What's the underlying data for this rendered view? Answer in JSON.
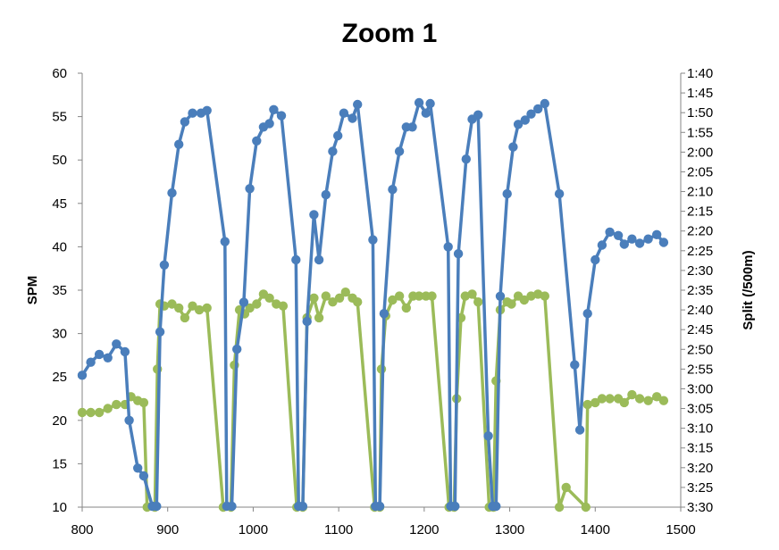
{
  "chart_data": {
    "type": "line",
    "title": "Zoom 1",
    "xlabel": "",
    "ylabel": "SPM",
    "y2label": "Split (/500m)",
    "xlim": [
      800,
      1500
    ],
    "ylim": [
      10,
      60
    ],
    "y2lim": [
      "1:40",
      "3:30"
    ],
    "x_ticks": [
      "800",
      "900",
      "1000",
      "1100",
      "1200",
      "1300",
      "1400",
      "1500"
    ],
    "y_ticks": [
      "10",
      "15",
      "20",
      "25",
      "30",
      "35",
      "40",
      "45",
      "50",
      "55",
      "60"
    ],
    "y2_ticks": [
      "1:40",
      "1:45",
      "1:50",
      "1:55",
      "2:00",
      "2:05",
      "2:10",
      "2:15",
      "2:20",
      "2:25",
      "2:30",
      "2:35",
      "2:40",
      "2:45",
      "2:50",
      "2:55",
      "3:00",
      "3:05",
      "3:10",
      "3:15",
      "3:20",
      "3:25",
      "3:30"
    ],
    "grid": false,
    "legend": "none",
    "series": [
      {
        "axis": "left",
        "color": "#4a7ebb",
        "points": [
          [
            800,
            25.2
          ],
          [
            810,
            26.7
          ],
          [
            820,
            27.6
          ],
          [
            830,
            27.2
          ],
          [
            840,
            28.8
          ],
          [
            850,
            27.9
          ],
          [
            855,
            20
          ],
          [
            865,
            14.5
          ],
          [
            872,
            13.6
          ],
          [
            882,
            10.1
          ],
          [
            887,
            10.1
          ],
          [
            891,
            30.2
          ],
          [
            896,
            37.9
          ],
          [
            905,
            46.2
          ],
          [
            913,
            51.8
          ],
          [
            920,
            54.4
          ],
          [
            929,
            55.4
          ],
          [
            939,
            55.4
          ],
          [
            946,
            55.7
          ],
          [
            967,
            40.6
          ],
          [
            969,
            10.1
          ],
          [
            975,
            10.1
          ],
          [
            981,
            28.2
          ],
          [
            989,
            33.6
          ],
          [
            996,
            46.7
          ],
          [
            1004,
            52.2
          ],
          [
            1012,
            53.8
          ],
          [
            1019,
            54.2
          ],
          [
            1024,
            55.8
          ],
          [
            1033,
            55.1
          ],
          [
            1050,
            38.5
          ],
          [
            1053,
            10.1
          ],
          [
            1058,
            10.1
          ],
          [
            1063,
            31.4
          ],
          [
            1071,
            43.7
          ],
          [
            1077,
            38.5
          ],
          [
            1085,
            46
          ],
          [
            1093,
            51
          ],
          [
            1099,
            52.8
          ],
          [
            1106,
            55.4
          ],
          [
            1116,
            54.8
          ],
          [
            1122,
            56.4
          ],
          [
            1140,
            40.8
          ],
          [
            1143,
            10.1
          ],
          [
            1148,
            10.1
          ],
          [
            1153,
            32.3
          ],
          [
            1163,
            46.6
          ],
          [
            1171,
            51
          ],
          [
            1179,
            53.8
          ],
          [
            1186,
            53.8
          ],
          [
            1194,
            56.6
          ],
          [
            1202,
            55.4
          ],
          [
            1207,
            56.5
          ],
          [
            1228,
            40
          ],
          [
            1231,
            10.1
          ],
          [
            1236,
            10.1
          ],
          [
            1240,
            39.2
          ],
          [
            1249,
            50.1
          ],
          [
            1256,
            54.7
          ],
          [
            1263,
            55.2
          ],
          [
            1275,
            18.2
          ],
          [
            1280,
            10.1
          ],
          [
            1284,
            10.1
          ],
          [
            1289,
            34.3
          ],
          [
            1297,
            46.1
          ],
          [
            1304,
            51.5
          ],
          [
            1310,
            54.1
          ],
          [
            1318,
            54.6
          ],
          [
            1325,
            55.3
          ],
          [
            1333,
            55.9
          ],
          [
            1341,
            56.5
          ],
          [
            1358,
            46.1
          ],
          [
            1376,
            26.4
          ],
          [
            1382,
            18.9
          ],
          [
            1391,
            32.3
          ],
          [
            1400,
            38.5
          ],
          [
            1408,
            40.2
          ],
          [
            1417,
            41.7
          ],
          [
            1427,
            41.3
          ],
          [
            1434,
            40.3
          ],
          [
            1443,
            40.9
          ],
          [
            1452,
            40.4
          ],
          [
            1462,
            40.9
          ],
          [
            1472,
            41.4
          ],
          [
            1480,
            40.5
          ]
        ]
      },
      {
        "axis": "right",
        "color": "#9bbb59",
        "points": [
          [
            800,
            3.1
          ],
          [
            810,
            3.1
          ],
          [
            820,
            3.1
          ],
          [
            830,
            3.0833
          ],
          [
            840,
            3.0667
          ],
          [
            850,
            3.0667
          ],
          [
            857,
            3.0333
          ],
          [
            865,
            3.05
          ],
          [
            872,
            3.0583
          ],
          [
            876,
            3.5
          ],
          [
            885,
            3.5
          ],
          [
            888,
            2.9167
          ],
          [
            891,
            2.6417
          ],
          [
            896,
            2.65
          ],
          [
            905,
            2.6417
          ],
          [
            913,
            2.6583
          ],
          [
            920,
            2.7
          ],
          [
            929,
            2.65
          ],
          [
            937,
            2.6667
          ],
          [
            946,
            2.6583
          ],
          [
            965,
            3.5
          ],
          [
            974,
            3.5
          ],
          [
            978,
            2.9
          ],
          [
            984,
            2.6667
          ],
          [
            990,
            2.6833
          ],
          [
            996,
            2.6583
          ],
          [
            1004,
            2.6417
          ],
          [
            1012,
            2.6
          ],
          [
            1019,
            2.6167
          ],
          [
            1027,
            2.6417
          ],
          [
            1035,
            2.65
          ],
          [
            1051,
            3.5
          ],
          [
            1058,
            3.5
          ],
          [
            1063,
            2.7
          ],
          [
            1071,
            2.6167
          ],
          [
            1077,
            2.7
          ],
          [
            1085,
            2.6083
          ],
          [
            1093,
            2.6333
          ],
          [
            1101,
            2.6167
          ],
          [
            1108,
            2.5917
          ],
          [
            1116,
            2.6167
          ],
          [
            1122,
            2.6333
          ],
          [
            1142,
            3.5
          ],
          [
            1148,
            3.5
          ],
          [
            1150,
            2.9167
          ],
          [
            1155,
            2.6917
          ],
          [
            1163,
            2.625
          ],
          [
            1171,
            2.6083
          ],
          [
            1179,
            2.6583
          ],
          [
            1187,
            2.6083
          ],
          [
            1194,
            2.6083
          ],
          [
            1202,
            2.6083
          ],
          [
            1209,
            2.6083
          ],
          [
            1229,
            3.5
          ],
          [
            1235,
            3.5
          ],
          [
            1238,
            3.0417
          ],
          [
            1243,
            2.7
          ],
          [
            1248,
            2.6083
          ],
          [
            1256,
            2.6
          ],
          [
            1263,
            2.6333
          ],
          [
            1276,
            3.5
          ],
          [
            1281,
            3.5
          ],
          [
            1284,
            2.9667
          ],
          [
            1289,
            2.6667
          ],
          [
            1297,
            2.6333
          ],
          [
            1302,
            2.6417
          ],
          [
            1310,
            2.6083
          ],
          [
            1317,
            2.625
          ],
          [
            1325,
            2.6083
          ],
          [
            1333,
            2.6
          ],
          [
            1341,
            2.6083
          ],
          [
            1358,
            3.5
          ],
          [
            1366,
            3.4167
          ],
          [
            1389,
            3.5
          ],
          [
            1391,
            3.0667
          ],
          [
            1400,
            3.0583
          ],
          [
            1408,
            3.0417
          ],
          [
            1417,
            3.0417
          ],
          [
            1427,
            3.0417
          ],
          [
            1434,
            3.0583
          ],
          [
            1443,
            3.025
          ],
          [
            1452,
            3.0417
          ],
          [
            1462,
            3.05
          ],
          [
            1472,
            3.0333
          ],
          [
            1480,
            3.05
          ]
        ]
      }
    ]
  }
}
